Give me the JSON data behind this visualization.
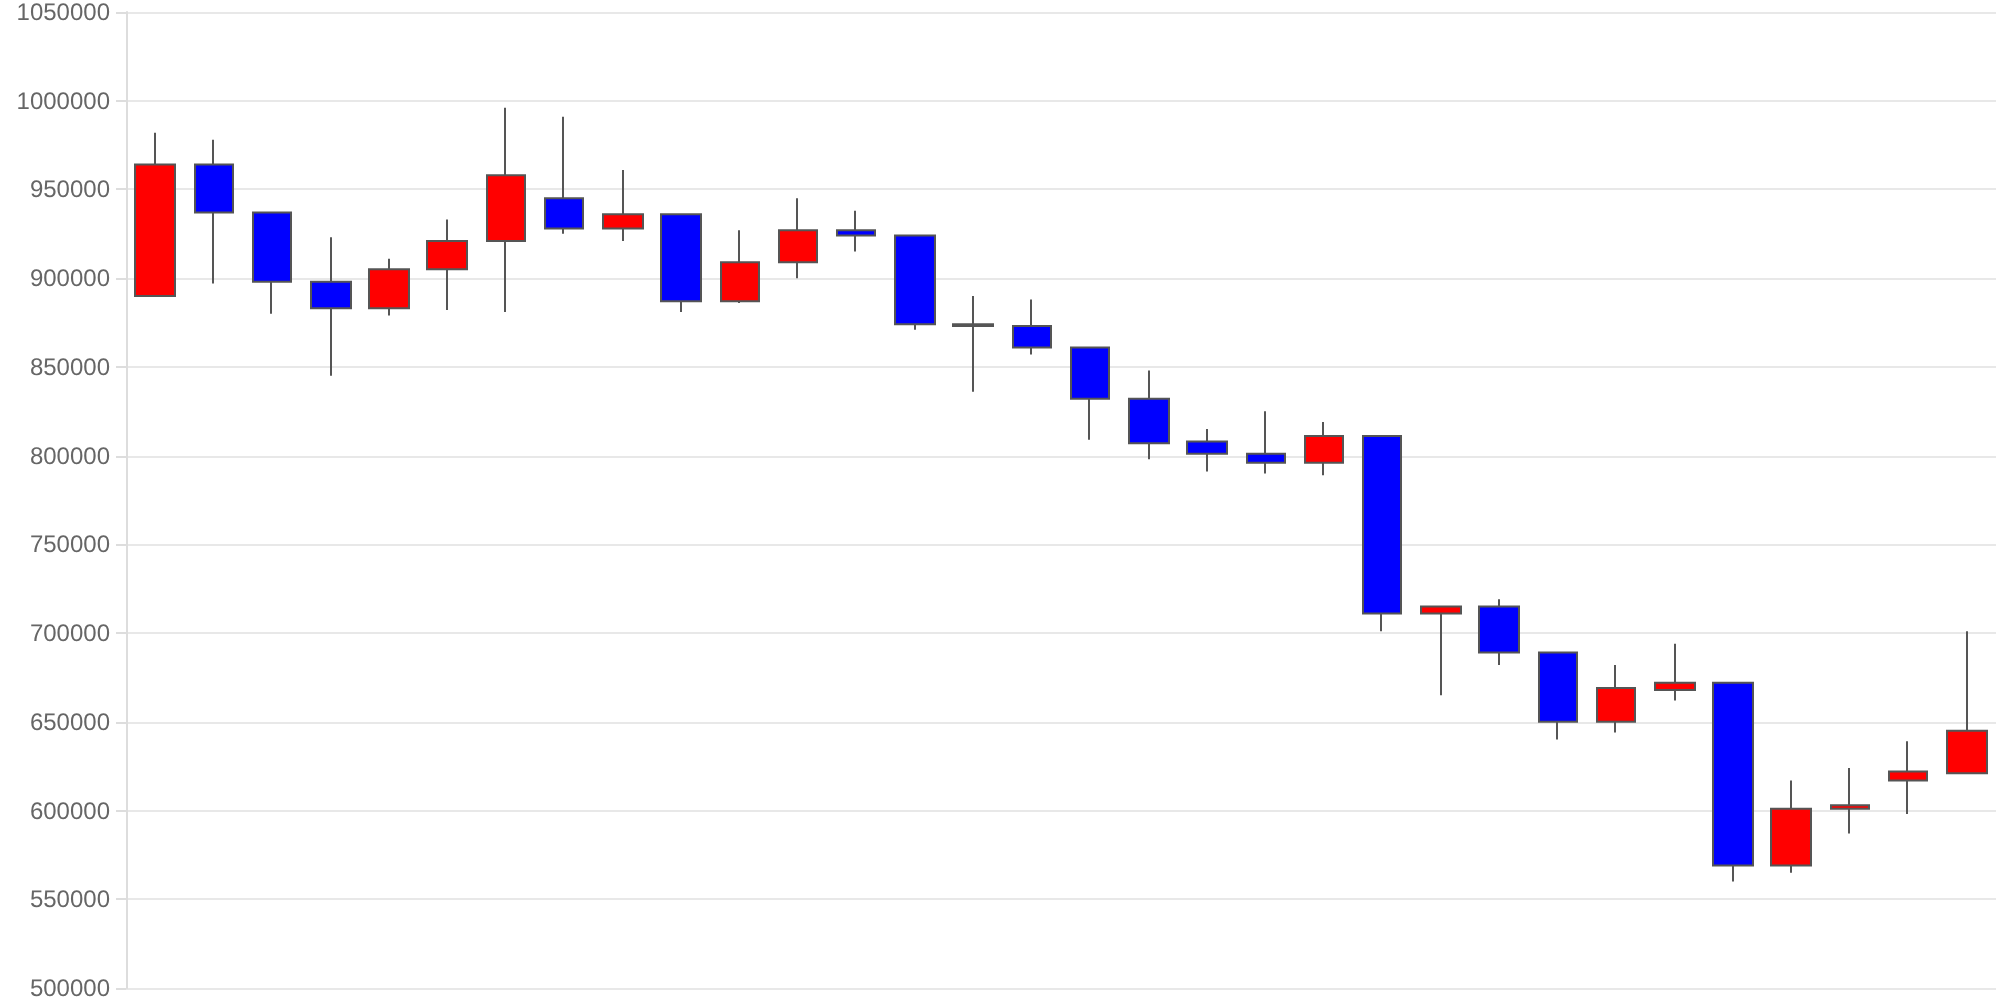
{
  "chart_data": {
    "type": "candlestick",
    "categories": [
      null,
      null,
      null,
      null,
      null,
      null,
      null,
      null,
      null,
      null,
      null,
      null,
      null,
      null,
      null,
      null,
      null,
      null,
      null,
      null,
      null,
      null,
      null,
      null,
      null,
      null,
      null,
      null,
      null,
      null,
      null,
      null
    ],
    "ohlc": [
      [
        890000,
        982000,
        890000,
        964000
      ],
      [
        964000,
        978000,
        897000,
        937000
      ],
      [
        937000,
        937000,
        880000,
        898000
      ],
      [
        898000,
        923000,
        845000,
        883000
      ],
      [
        883000,
        911000,
        879000,
        905000
      ],
      [
        905000,
        933000,
        882000,
        921000
      ],
      [
        921000,
        996000,
        881000,
        958000
      ],
      [
        945000,
        991000,
        925000,
        928000
      ],
      [
        928000,
        961000,
        921000,
        936000
      ],
      [
        936000,
        936000,
        881000,
        887000
      ],
      [
        887000,
        927000,
        886000,
        909000
      ],
      [
        909000,
        945000,
        900000,
        927000
      ],
      [
        927000,
        938000,
        915000,
        924000
      ],
      [
        924000,
        924000,
        871000,
        874000
      ],
      [
        874000,
        890000,
        836000,
        873000
      ],
      [
        873000,
        888000,
        857000,
        861000
      ],
      [
        861000,
        861000,
        809000,
        832000
      ],
      [
        832000,
        848000,
        798000,
        807000
      ],
      [
        808000,
        815000,
        791000,
        801000
      ],
      [
        801000,
        825000,
        790000,
        796000
      ],
      [
        796000,
        819000,
        789000,
        811000
      ],
      [
        811000,
        811000,
        701000,
        711000
      ],
      [
        711000,
        715000,
        665000,
        715000
      ],
      [
        715000,
        719000,
        682000,
        689000
      ],
      [
        689000,
        689000,
        640000,
        650000
      ],
      [
        650000,
        682000,
        644000,
        669000
      ],
      [
        668000,
        694000,
        662000,
        672000
      ],
      [
        672000,
        672000,
        560000,
        569000
      ],
      [
        569000,
        617000,
        565000,
        601000
      ],
      [
        601000,
        624000,
        587000,
        603000
      ],
      [
        617000,
        639000,
        598000,
        622000
      ],
      [
        621000,
        701000,
        621000,
        645000
      ]
    ],
    "colors": [
      "#ff0000",
      "#0000ff",
      "#0000ff",
      "#0000ff",
      "#ff0000",
      "#ff0000",
      "#ff0000",
      "#0000ff",
      "#ff0000",
      "#0000ff",
      "#ff0000",
      "#ff0000",
      "#0000ff",
      "#0000ff",
      "#0000ff",
      "#0000ff",
      "#0000ff",
      "#0000ff",
      "#0000ff",
      "#0000ff",
      "#ff0000",
      "#0000ff",
      "#ff0000",
      "#0000ff",
      "#0000ff",
      "#ff0000",
      "#ff0000",
      "#0000ff",
      "#ff0000",
      "#ff0000",
      "#ff0000",
      "#ff0000"
    ],
    "ylim": [
      500000,
      1050000
    ],
    "yticks": [
      500000,
      550000,
      600000,
      650000,
      700000,
      750000,
      800000,
      850000,
      900000,
      950000,
      1000000,
      1050000
    ],
    "grid": "y",
    "tick_labels": "y"
  }
}
